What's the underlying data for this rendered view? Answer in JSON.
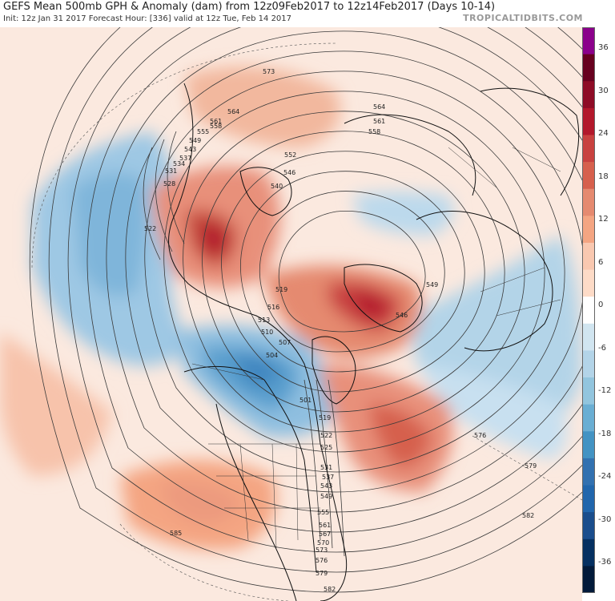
{
  "header": {
    "title": "GEFS Mean 500mb GPH & Anomaly (dam) from 12z09Feb2017 to 12z14Feb2017 (Days 10-14)",
    "subtitle": "Init: 12z Jan 31 2017   Forecast Hour: [336]   valid at 12z Tue, Feb 14 2017",
    "brand": "TROPICALTIDBITS.COM"
  },
  "colorbar": {
    "ticks": [
      "36",
      "30",
      "24",
      "18",
      "12",
      "6",
      "0",
      "-6",
      "-12",
      "-18",
      "-24",
      "-30",
      "-36"
    ],
    "colors": [
      "#8b008b",
      "#67001f",
      "#8e0c26",
      "#b2182b",
      "#c8413f",
      "#d6604d",
      "#e58a70",
      "#f4a582",
      "#f9c8b0",
      "#fddbc7",
      "#ffffff",
      "#d1e5f0",
      "#b3d4e8",
      "#92c5de",
      "#6aaed3",
      "#4393c3",
      "#3271b0",
      "#2166ac",
      "#1a4d8c",
      "#053061",
      "#021a3a"
    ]
  },
  "contour_labels": [
    "573",
    "564",
    "561",
    "558",
    "555",
    "549",
    "543",
    "537",
    "534",
    "531",
    "528",
    "522",
    "552",
    "546",
    "540",
    "519",
    "516",
    "513",
    "510",
    "507",
    "504",
    "501",
    "564",
    "561",
    "558",
    "549",
    "546",
    "576",
    "579",
    "582",
    "585",
    "519",
    "522",
    "525",
    "531",
    "537",
    "543",
    "549",
    "555",
    "561",
    "567",
    "570",
    "573",
    "576",
    "579",
    "582"
  ]
}
